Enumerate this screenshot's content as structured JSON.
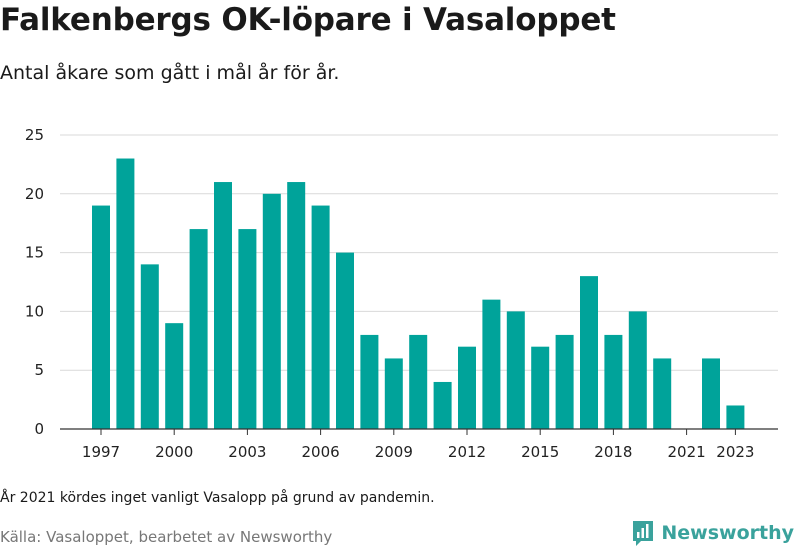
{
  "header": {
    "title": "Falkenbergs OK-löpare i Vasaloppet",
    "subtitle": "Antal åkare som gått i mål år för år."
  },
  "footer": {
    "note": "År 2021 kördes inget vanligt Vasalopp på grund av pandemin.",
    "source": "Källa: Vasaloppet, bearbetet av Newsworthy",
    "brand": "Newsworthy"
  },
  "colors": {
    "bar": "#00a39a",
    "brand": "#3aa29c",
    "grid": "#d9d9d9",
    "axis": "#333333"
  },
  "chart_data": {
    "type": "bar",
    "title": "Falkenbergs OK-löpare i Vasaloppet",
    "subtitle": "Antal åkare som gått i mål år för år.",
    "xlabel": "",
    "ylabel": "",
    "categories": [
      1997,
      1998,
      1999,
      2000,
      2001,
      2002,
      2003,
      2004,
      2005,
      2006,
      2007,
      2008,
      2009,
      2010,
      2011,
      2012,
      2013,
      2014,
      2015,
      2016,
      2017,
      2018,
      2019,
      2020,
      2021,
      2022,
      2023
    ],
    "values": [
      19,
      23,
      14,
      9,
      17,
      21,
      17,
      20,
      21,
      19,
      15,
      8,
      6,
      8,
      4,
      7,
      11,
      10,
      7,
      8,
      13,
      8,
      10,
      6,
      0,
      6,
      2
    ],
    "x_ticks": [
      1997,
      2000,
      2003,
      2006,
      2009,
      2012,
      2015,
      2018,
      2021,
      2023
    ],
    "y_ticks": [
      0,
      5,
      10,
      15,
      20,
      25
    ],
    "ylim": [
      0,
      25
    ],
    "grid": true
  }
}
